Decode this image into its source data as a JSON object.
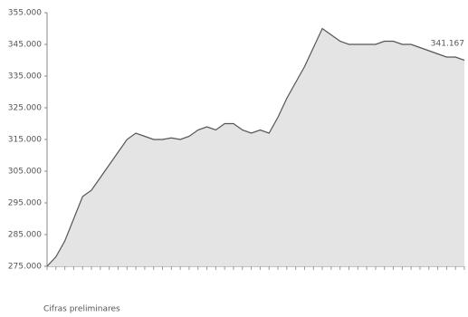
{
  "chart_data": {
    "type": "line",
    "categories": [
      null,
      null,
      null,
      null,
      null,
      null,
      null,
      null,
      null,
      null,
      null,
      null,
      null,
      null,
      null,
      null,
      null,
      null,
      null,
      null,
      null,
      null,
      null,
      null,
      null,
      null,
      null,
      null,
      null,
      null,
      null,
      null,
      null,
      null,
      null,
      null,
      null,
      null,
      null,
      null,
      null,
      null,
      null,
      null,
      null,
      null,
      null,
      null
    ],
    "series": [
      {
        "name": null,
        "color": "#555555",
        "values": [
          275000,
          278000,
          283000,
          290000,
          297000,
          299000,
          303000,
          307000,
          311000,
          315000,
          317000,
          316000,
          315000,
          315000,
          315500,
          315000,
          316000,
          318000,
          319000,
          318000,
          320000,
          320000,
          318000,
          317000,
          318000,
          317000,
          322000,
          328000,
          333000,
          338000,
          344000,
          350000,
          348000,
          346000,
          345000,
          345000,
          345000,
          345000,
          346000,
          346000,
          345000,
          345000,
          344000,
          343000,
          342000,
          341000,
          341000,
          340000
        ]
      }
    ],
    "ylim": [
      275000,
      355000
    ],
    "yticks": [
      {
        "value": 275000,
        "label": "275.000"
      },
      {
        "value": 285000,
        "label": "285.000"
      },
      {
        "value": 295000,
        "label": "295.000"
      },
      {
        "value": 305000,
        "label": "305.000"
      },
      {
        "value": 315000,
        "label": "315.000"
      },
      {
        "value": 325000,
        "label": "325.000"
      },
      {
        "value": 335000,
        "label": "335.000"
      },
      {
        "value": 345000,
        "label": "345.000"
      },
      {
        "value": 355000,
        "label": "355.000"
      }
    ],
    "annotation": "341.167",
    "note": "Cifras preliminares"
  }
}
